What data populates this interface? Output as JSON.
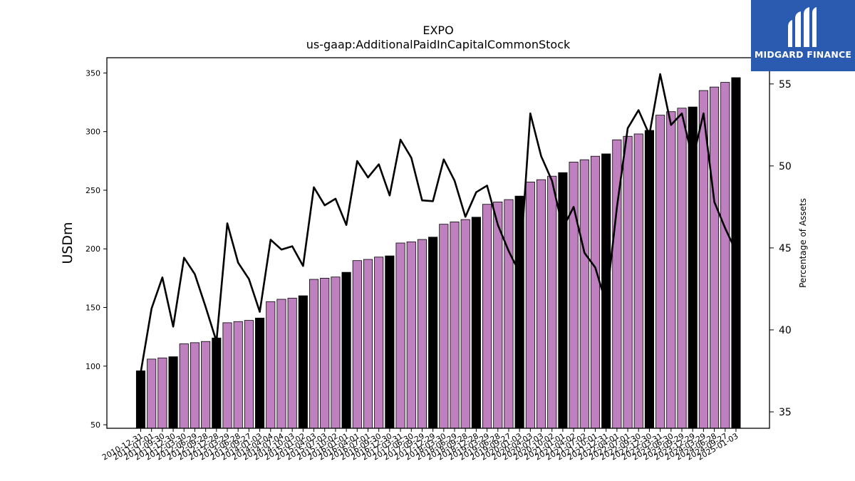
{
  "brand": {
    "name": "MIDGARD FINANCE",
    "bg_color": "#2b5bb0"
  },
  "chart_data": {
    "type": "bar",
    "title": "EXPO",
    "subtitle": "us-gaap:AdditionalPaidInCapitalCommonStock",
    "ylabel": "USDm",
    "y2label": "Percentage of Assets",
    "ylim": [
      47,
      363
    ],
    "y2lim": [
      34,
      56.6
    ],
    "yticks": [
      50,
      100,
      150,
      200,
      250,
      300,
      350
    ],
    "y2ticks": [
      35,
      40,
      45,
      50,
      55
    ],
    "colors": {
      "bar": "#bf80bf",
      "bar_year_end": "#000000",
      "line": "#000000"
    },
    "x": [
      "2010-12-31",
      "2011-07-01",
      "2011-09-30",
      "2011-12-30",
      "2012-03-30",
      "2012-06-29",
      "2012-09-28",
      "2012-12-28",
      "2013-03-29",
      "2013-06-28",
      "2013-09-27",
      "2014-01-03",
      "2014-04-04",
      "2014-07-04",
      "2014-10-03",
      "2015-01-02",
      "2015-04-03",
      "2015-07-03",
      "2015-10-02",
      "2016-01-01",
      "2016-04-01",
      "2016-07-01",
      "2016-09-30",
      "2016-12-30",
      "2017-03-31",
      "2017-06-30",
      "2017-09-29",
      "2017-12-29",
      "2018-03-30",
      "2018-06-29",
      "2018-09-28",
      "2018-12-28",
      "2019-03-29",
      "2019-06-28",
      "2019-09-27",
      "2020-01-03",
      "2020-04-03",
      "2020-07-03",
      "2020-10-02",
      "2021-01-01",
      "2021-04-02",
      "2021-07-02",
      "2021-10-01",
      "2021-12-31",
      "2022-04-01",
      "2022-07-01",
      "2022-09-30",
      "2022-12-30",
      "2023-03-31",
      "2023-06-30",
      "2023-09-29",
      "2023-12-29",
      "2024-03-29",
      "2024-06-28",
      "2024-09-27",
      "2025-01-03"
    ],
    "year_end_flags": [
      1,
      0,
      0,
      1,
      0,
      0,
      0,
      1,
      0,
      0,
      0,
      1,
      0,
      0,
      0,
      1,
      0,
      0,
      0,
      1,
      0,
      0,
      0,
      1,
      0,
      0,
      0,
      1,
      0,
      0,
      0,
      1,
      0,
      0,
      0,
      1,
      0,
      0,
      0,
      1,
      0,
      0,
      0,
      1,
      0,
      0,
      0,
      1,
      0,
      0,
      0,
      1,
      0,
      0,
      0,
      1
    ],
    "series": [
      {
        "name": "USDm",
        "type": "bar",
        "values": [
          96,
          106,
          107,
          108,
          119,
          120,
          121,
          124,
          137,
          138,
          139,
          141,
          155,
          157,
          158,
          160,
          174,
          175,
          176,
          180,
          190,
          191,
          193,
          194,
          205,
          206,
          208,
          210,
          221,
          223,
          225,
          227,
          238,
          240,
          242,
          245,
          257,
          259,
          262,
          265,
          274,
          276,
          279,
          281,
          293,
          296,
          298,
          301,
          314,
          317,
          320,
          321,
          335,
          338,
          342,
          346
        ]
      },
      {
        "name": "Percentage of Assets",
        "type": "line",
        "axis": "right",
        "values": [
          37.4,
          41.3,
          43.2,
          40.2,
          44.4,
          43.4,
          41.4,
          39.3,
          46.5,
          44.1,
          43.1,
          41.1,
          45.5,
          44.9,
          45.1,
          43.9,
          48.7,
          47.6,
          48.0,
          46.4,
          50.3,
          49.3,
          50.1,
          48.2,
          51.6,
          50.5,
          47.9,
          47.85,
          50.4,
          49.1,
          46.9,
          48.4,
          48.8,
          46.4,
          44.8,
          43.5,
          53.2,
          50.6,
          49.1,
          46.2,
          47.5,
          44.7,
          43.8,
          41.6,
          47.5,
          52.3,
          53.4,
          51.9,
          55.6,
          52.5,
          53.2,
          50.4,
          53.2,
          47.8,
          46.2,
          44.8
        ]
      }
    ]
  }
}
